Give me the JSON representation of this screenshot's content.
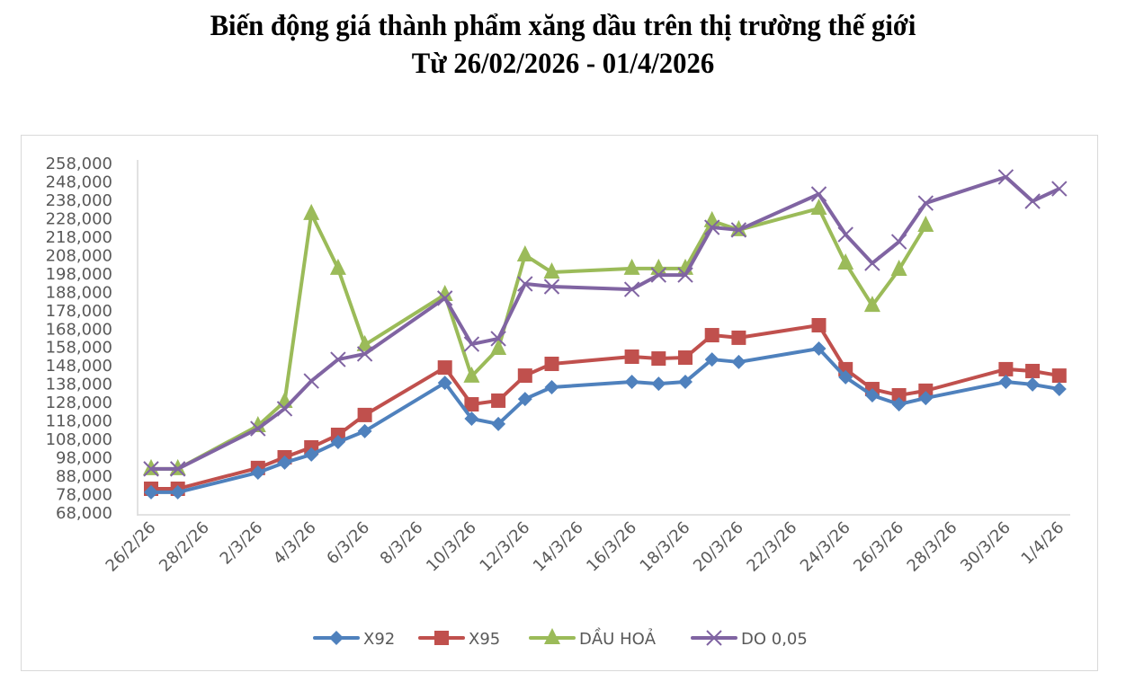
{
  "title": {
    "line1": "Biến động giá thành phẩm xăng dầu trên thị trường thế giới",
    "line2": "Từ 26/02/2026 - 01/4/2026"
  },
  "colors": {
    "X92": "#4f81bd",
    "X95": "#c0504d",
    "DAU_HOA": "#9bbb59",
    "DO": "#8064a2",
    "axis": "#d9d9d9",
    "text": "#595959"
  },
  "chart_data": {
    "type": "line",
    "title": "Biến động giá thành phẩm xăng dầu trên thị trường thế giới — Từ 26/02/2026 - 01/4/2026",
    "xlabel": "",
    "ylabel": "",
    "ylim": [
      68000,
      258000
    ],
    "y_ticks": [
      "68,000",
      "78,000",
      "88,000",
      "98,000",
      "108,000",
      "118,000",
      "128,000",
      "138,000",
      "148,000",
      "158,000",
      "168,000",
      "178,000",
      "188,000",
      "198,000",
      "208,000",
      "218,000",
      "228,000",
      "238,000",
      "248,000",
      "258,000"
    ],
    "x_tick_labels": [
      "26/2/26",
      "28/2/26",
      "2/3/26",
      "4/3/26",
      "6/3/26",
      "8/3/26",
      "10/3/26",
      "12/3/26",
      "14/3/26",
      "16/3/26",
      "18/3/26",
      "20/3/26",
      "22/3/26",
      "24/3/26",
      "26/3/26",
      "28/3/26",
      "30/3/26",
      "1/4/26"
    ],
    "grid": false,
    "legend_position": "bottom",
    "x": [
      "26/2/26",
      "27/2/26",
      "2/3/26",
      "3/3/26",
      "4/3/26",
      "5/3/26",
      "6/3/26",
      "9/3/26",
      "10/3/26",
      "11/3/26",
      "12/3/26",
      "13/3/26",
      "16/3/26",
      "17/3/26",
      "18/3/26",
      "19/3/26",
      "20/3/26",
      "23/3/26",
      "24/3/26",
      "25/3/26",
      "26/3/26",
      "27/3/26",
      "30/3/26",
      "31/3/26",
      "1/4/26"
    ],
    "x_day_index": [
      0,
      1,
      4,
      5,
      6,
      7,
      8,
      11,
      12,
      13,
      14,
      15,
      18,
      19,
      20,
      21,
      22,
      25,
      26,
      27,
      28,
      29,
      32,
      33,
      34
    ],
    "series": [
      {
        "name": "X92",
        "marker": "diamond",
        "values": [
          78800,
          78800,
          89500,
          94900,
          99300,
          106100,
          112000,
          138300,
          118800,
          115900,
          129500,
          135900,
          138800,
          137800,
          138800,
          151000,
          149600,
          156900,
          141300,
          131500,
          126600,
          130000,
          138800,
          137400,
          134900
        ]
      },
      {
        "name": "X95",
        "marker": "square",
        "values": [
          80700,
          80700,
          92000,
          97800,
          103200,
          110000,
          120800,
          146600,
          126600,
          128600,
          142200,
          148600,
          152500,
          151500,
          152000,
          164200,
          162800,
          169600,
          145700,
          134900,
          131500,
          134000,
          145700,
          144700,
          142200
        ]
      },
      {
        "name": "DẦU HOẢ",
        "marker": "triangle",
        "values": [
          91500,
          91500,
          114900,
          128100,
          230200,
          200400,
          158900,
          186200,
          141800,
          156900,
          207700,
          198400,
          200400,
          200400,
          200400,
          226300,
          221400,
          233100,
          203300,
          180300,
          199900,
          223800,
          null,
          null,
          null
        ]
      },
      {
        "name": "DO 0,05",
        "marker": "x",
        "values": [
          91500,
          91500,
          113400,
          124200,
          139300,
          151000,
          154000,
          184300,
          159300,
          162300,
          192100,
          190600,
          189100,
          196900,
          196900,
          222800,
          221400,
          240900,
          218900,
          203300,
          215000,
          236000,
          250200,
          237000,
          243800
        ]
      }
    ]
  },
  "legend": [
    {
      "label": "X92"
    },
    {
      "label": "X95"
    },
    {
      "label": "DẦU HOẢ"
    },
    {
      "label": "DO 0,05"
    }
  ]
}
